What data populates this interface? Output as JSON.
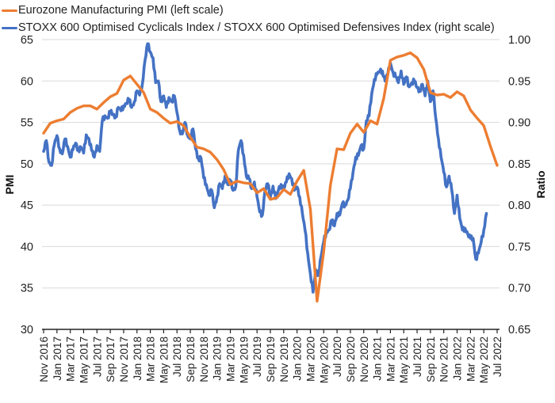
{
  "chart_data": {
    "type": "line",
    "title": "",
    "legend": {
      "placement": "top-left",
      "entries": [
        {
          "name": "Eurozone Manufacturing PMI (left scale)",
          "color": "#ED7D31"
        },
        {
          "name": "STOXX 600 Optimised Cyclicals Index / STOXX 600 Optimised Defensives Index (right scale)",
          "color": "#4472C4"
        }
      ]
    },
    "ylabel": "PMI",
    "y2label": "Ratio",
    "ylim": [
      30,
      65
    ],
    "y2lim": [
      0.65,
      1.0
    ],
    "yticks": [
      "30",
      "35",
      "40",
      "45",
      "50",
      "55",
      "60",
      "65"
    ],
    "y2ticks": [
      "0.65",
      "0.70",
      "0.75",
      "0.80",
      "0.85",
      "0.90",
      "0.95",
      "1.00"
    ],
    "grid": true,
    "xticks": [
      "Nov 2016",
      "Jan 2017",
      "Mar 2017",
      "May 2017",
      "Jul 2017",
      "Sep 2017",
      "Nov 2017",
      "Jan 2018",
      "Mar 2018",
      "May 2018",
      "Jul 2018",
      "Sep 2018",
      "Nov 2018",
      "Jan 2019",
      "Mar 2019",
      "May 2019",
      "Jul 2019",
      "Sep 2019",
      "Nov 2019",
      "Jan 2020",
      "Mar 2020",
      "May 2020",
      "Jul 2020",
      "Sep 2020",
      "Nov 2020",
      "Jan 2021",
      "Mar 2021",
      "May 2021",
      "Jul 2021",
      "Sep 2021",
      "Nov 2021",
      "Jan 2022",
      "Mar 2022",
      "May 2022",
      "Jul 2022"
    ],
    "series": [
      {
        "name": "Eurozone Manufacturing PMI (left scale)",
        "axis": "left",
        "color": "#ED7D31",
        "frequency": "monthly",
        "start": "Nov 2016",
        "values": [
          53.7,
          54.9,
          55.2,
          55.4,
          56.2,
          56.7,
          57.0,
          57.0,
          56.6,
          57.4,
          58.1,
          58.5,
          60.1,
          60.6,
          59.6,
          58.6,
          56.6,
          56.2,
          55.5,
          54.9,
          55.1,
          54.6,
          53.2,
          52.0,
          51.8,
          51.4,
          50.5,
          49.3,
          47.5,
          47.9,
          47.7,
          47.6,
          46.5,
          47.0,
          45.7,
          45.9,
          46.9,
          46.3,
          47.9,
          49.2,
          44.5,
          33.4,
          39.4,
          47.4,
          51.8,
          51.7,
          53.7,
          54.8,
          53.8,
          55.2,
          54.8,
          57.9,
          62.5,
          62.9,
          63.1,
          63.4,
          62.8,
          61.4,
          58.6,
          58.3,
          58.4,
          58.0,
          58.7,
          58.2,
          56.5,
          55.5,
          54.6,
          52.1,
          49.8
        ]
      },
      {
        "name": "STOXX 600 Optimised Cyclicals Index / STOXX 600 Optimised Defensives Index (right scale)",
        "axis": "right",
        "color": "#4472C4",
        "frequency": "semi-monthly",
        "start": "Nov 2016",
        "values": [
          0.865,
          0.878,
          0.852,
          0.848,
          0.873,
          0.884,
          0.868,
          0.862,
          0.88,
          0.871,
          0.858,
          0.867,
          0.875,
          0.866,
          0.87,
          0.863,
          0.885,
          0.88,
          0.866,
          0.858,
          0.872,
          0.865,
          0.902,
          0.908,
          0.905,
          0.913,
          0.91,
          0.906,
          0.918,
          0.914,
          0.92,
          0.923,
          0.928,
          0.918,
          0.925,
          0.938,
          0.933,
          0.946,
          0.975,
          0.995,
          0.985,
          0.978,
          0.948,
          0.95,
          0.925,
          0.932,
          0.918,
          0.93,
          0.925,
          0.932,
          0.912,
          0.89,
          0.886,
          0.9,
          0.884,
          0.88,
          0.892,
          0.868,
          0.856,
          0.857,
          0.833,
          0.825,
          0.812,
          0.818,
          0.797,
          0.81,
          0.826,
          0.82,
          0.835,
          0.825,
          0.83,
          0.818,
          0.822,
          0.866,
          0.878,
          0.86,
          0.835,
          0.832,
          0.82,
          0.828,
          0.81,
          0.792,
          0.788,
          0.818,
          0.826,
          0.81,
          0.823,
          0.808,
          0.818,
          0.825,
          0.82,
          0.828,
          0.838,
          0.832,
          0.818,
          0.822,
          0.81,
          0.79,
          0.77,
          0.742,
          0.717,
          0.695,
          0.722,
          0.715,
          0.738,
          0.756,
          0.768,
          0.77,
          0.782,
          0.775,
          0.79,
          0.788,
          0.802,
          0.8,
          0.806,
          0.82,
          0.84,
          0.858,
          0.86,
          0.872,
          0.868,
          0.902,
          0.908,
          0.935,
          0.952,
          0.958,
          0.962,
          0.962,
          0.95,
          0.958,
          0.972,
          0.96,
          0.955,
          0.948,
          0.962,
          0.946,
          0.955,
          0.943,
          0.948,
          0.95,
          0.942,
          0.938,
          0.946,
          0.932,
          0.95,
          0.925,
          0.938,
          0.905,
          0.88,
          0.858,
          0.84,
          0.822,
          0.835,
          0.818,
          0.79,
          0.812,
          0.784,
          0.77,
          0.772,
          0.765,
          0.76,
          0.76,
          0.735,
          0.742,
          0.755,
          0.77,
          0.79
        ]
      }
    ]
  }
}
